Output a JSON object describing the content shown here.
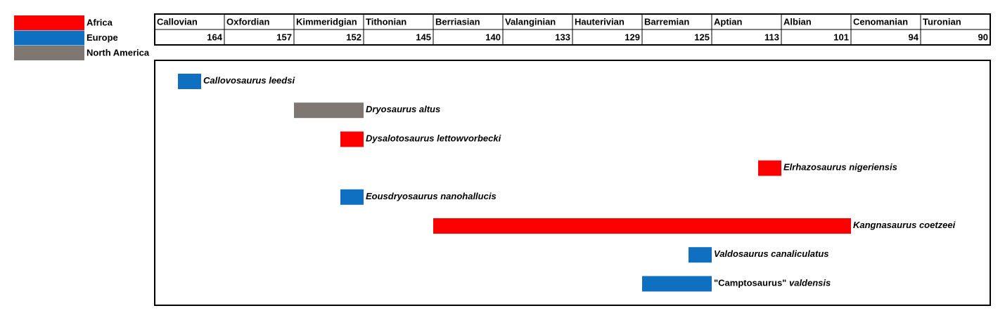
{
  "chart_data": {
    "type": "timeline",
    "legend": [
      {
        "name": "Africa",
        "color": "#ff0000"
      },
      {
        "name": "Europe",
        "color": "#0f6fc0"
      },
      {
        "name": "North America",
        "color": "#7f7772"
      }
    ],
    "stages": [
      "Callovian",
      "Oxfordian",
      "Kimmeridgian",
      "Tithonian",
      "Berriasian",
      "Valanginian",
      "Hauterivian",
      "Barremian",
      "Aptian",
      "Albian",
      "Cenomanian",
      "Turonian"
    ],
    "ages": [
      164,
      157,
      152,
      145,
      140,
      133,
      129,
      125,
      113,
      101,
      94,
      90
    ],
    "taxa": [
      {
        "genus": "Callovosaurus",
        "species": "leedsi",
        "region": 1,
        "from": "Callovian",
        "to": "Callovian"
      },
      {
        "genus": "Dryosaurus",
        "species": "altus",
        "region": 2,
        "from": "Kimmeridgian",
        "to": "Kimmeridgian"
      },
      {
        "genus": "Dysalotosaurus",
        "species": "lettowvorbecki",
        "region": 0,
        "from": "Kimmeridgian",
        "to": "Kimmeridgian"
      },
      {
        "genus": "Elrhazosaurus",
        "species": "nigeriensis",
        "region": 0,
        "from": "Aptian",
        "to": "Aptian"
      },
      {
        "genus": "Eousdryosaurus",
        "species": "nanohallucis",
        "region": 1,
        "from": "Kimmeridgian",
        "to": "Kimmeridgian"
      },
      {
        "genus": "Kangnasaurus",
        "species": "coetzeei",
        "region": 0,
        "from": "Berriasian",
        "to": "Albian"
      },
      {
        "genus": "Valdosaurus",
        "species": "canaliculatus",
        "region": 1,
        "from": "Barremian",
        "to": "Barremian"
      },
      {
        "genus": "\"Camptosaurus\"",
        "species": "valdensis",
        "region": 1,
        "from": "Barremian",
        "to": "Barremian"
      }
    ]
  }
}
